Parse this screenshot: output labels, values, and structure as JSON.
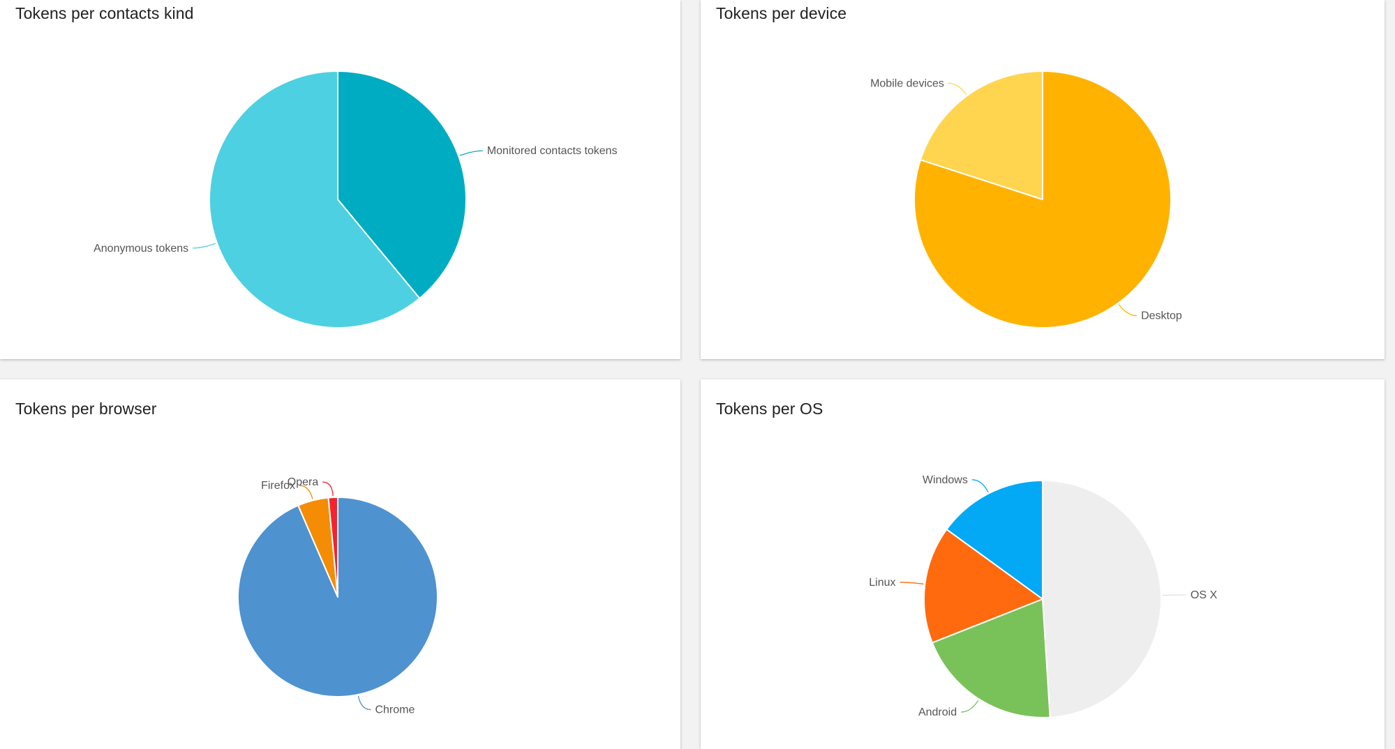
{
  "chart_data": [
    {
      "type": "pie",
      "title": "Tokens per contacts kind",
      "categories": [
        "Monitored contacts tokens",
        "Anonymous tokens"
      ],
      "values": [
        39,
        61
      ],
      "colors": [
        "#00acc1",
        "#4dd0e1"
      ],
      "start_angle_deg": 0
    },
    {
      "type": "pie",
      "title": "Tokens per device",
      "categories": [
        "Desktop",
        "Mobile devices"
      ],
      "values": [
        80,
        20
      ],
      "colors": [
        "#ffb300",
        "#ffd54f"
      ],
      "start_angle_deg": 0
    },
    {
      "type": "pie",
      "title": "Tokens per browser",
      "categories": [
        "Chrome",
        "Firefox",
        "Opera"
      ],
      "values": [
        93.5,
        5,
        1.5
      ],
      "colors": [
        "#4e92d0",
        "#f48c06",
        "#f3232f"
      ],
      "start_angle_deg": 0
    },
    {
      "type": "pie",
      "title": "Tokens per OS",
      "categories": [
        "OS X",
        "Android",
        "Linux",
        "Windows"
      ],
      "values": [
        49,
        20,
        16,
        15
      ],
      "colors": [
        "#eeeeee",
        "#79c25a",
        "#ff6a0e",
        "#03a9f4"
      ],
      "start_angle_deg": 0
    }
  ]
}
